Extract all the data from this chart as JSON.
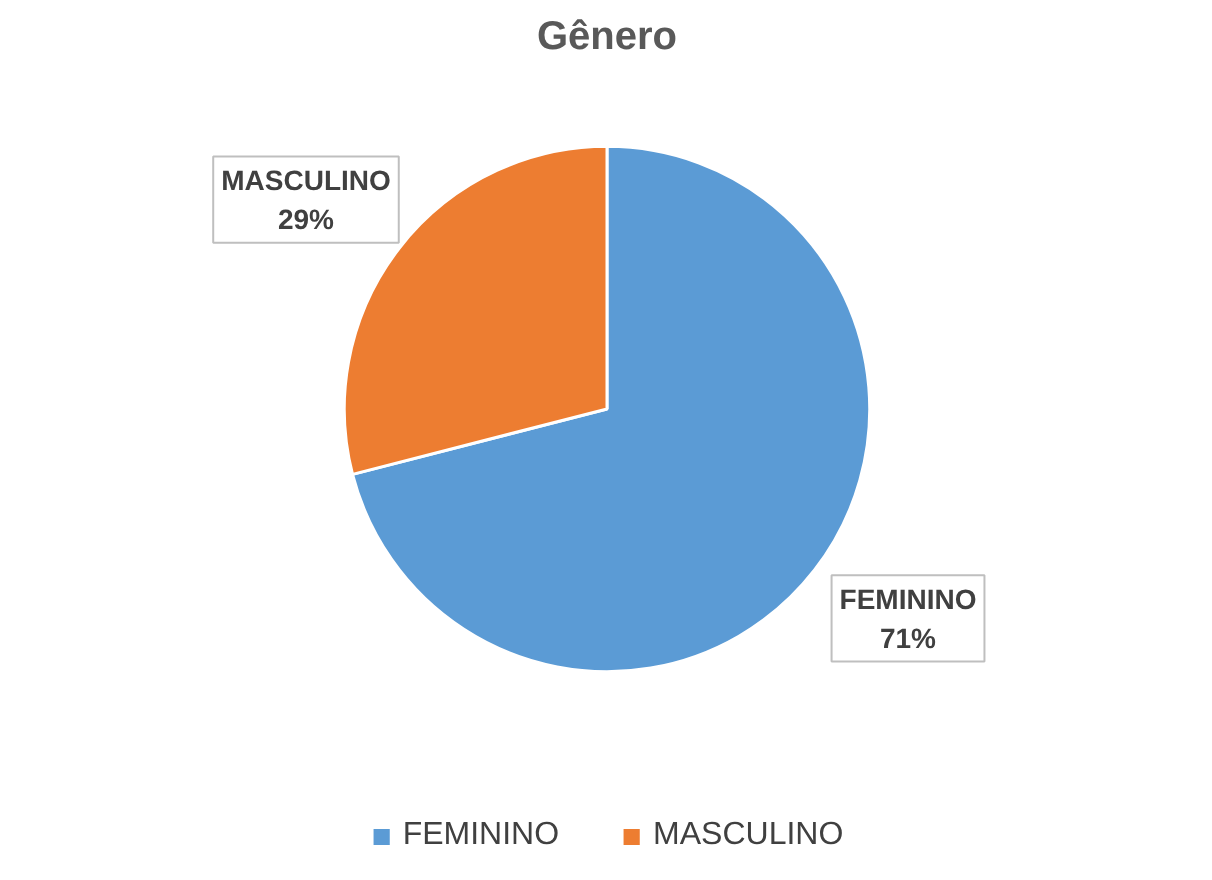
{
  "chart_data": {
    "type": "pie",
    "title": "Gênero",
    "categories": [
      "FEMININO",
      "MASCULINO"
    ],
    "values": [
      71,
      29
    ],
    "colors": [
      "#5b9bd5",
      "#ed7d31"
    ],
    "value_labels": [
      "71%",
      "29%"
    ],
    "legend": "bottom"
  }
}
